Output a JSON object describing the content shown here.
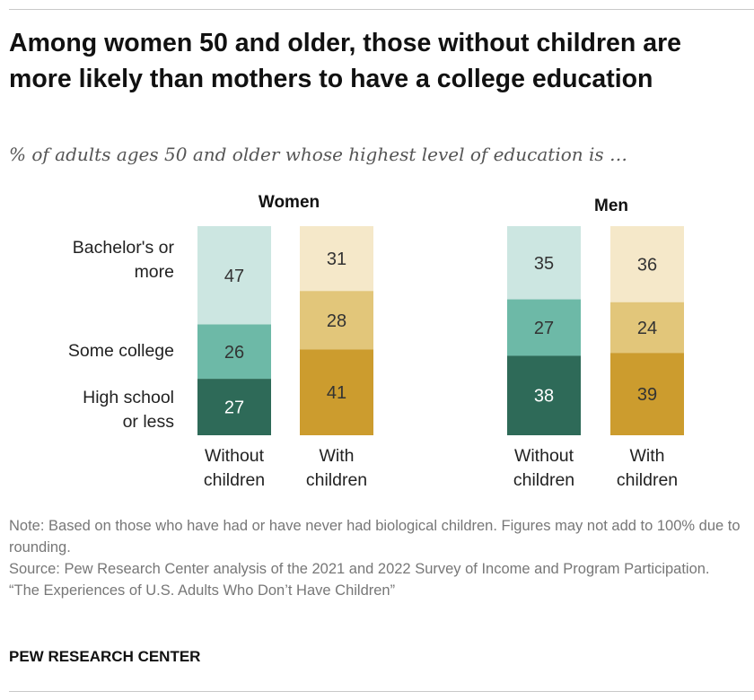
{
  "title": "Among women 50 and older, those without children are more likely than mothers to have a college education",
  "subtitle": "% of adults ages 50 and older whose highest level of education is …",
  "colors": {
    "women_without": [
      "#cce6e1",
      "#6db9a7",
      "#2e6a58"
    ],
    "women_with": [
      "#f5e8c9",
      "#e2c67a",
      "#cc9c2e"
    ]
  },
  "chart_data": {
    "type": "bar",
    "stacked": true,
    "categories_levels": [
      "Bachelor's or more",
      "Some college",
      "High school or less"
    ],
    "level_labels": [
      "Bachelor's or\nmore",
      "Some college",
      "High school\nor less"
    ],
    "panels": [
      {
        "title": "Women",
        "bars": [
          {
            "label": "Without\nchildren",
            "values": [
              47,
              26,
              27
            ]
          },
          {
            "label": "With\nchildren",
            "values": [
              31,
              28,
              41
            ]
          }
        ]
      },
      {
        "title": "Men",
        "bars": [
          {
            "label": "Without\nchildren",
            "values": [
              35,
              27,
              38
            ]
          },
          {
            "label": "With\nchildren",
            "values": [
              36,
              24,
              39
            ]
          }
        ]
      }
    ]
  },
  "notes": {
    "note": "Note: Based on those who have had or have never had biological children. Figures may not add to 100% due to rounding.",
    "source": "Source: Pew Research Center analysis of the 2021 and 2022 Survey of Income and Program Participation.",
    "report": "“The Experiences of U.S. Adults Who Don’t Have Children”"
  },
  "brand": "PEW RESEARCH CENTER"
}
